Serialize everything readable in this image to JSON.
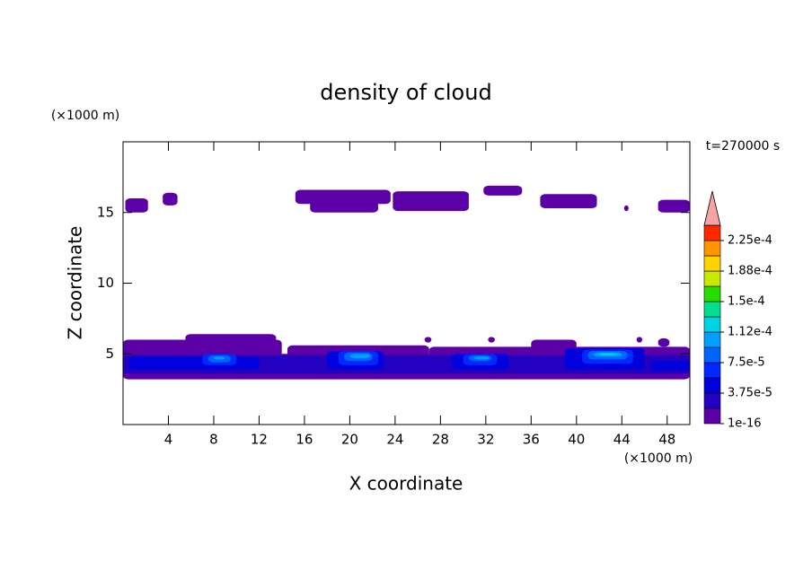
{
  "chart_data": {
    "type": "contour",
    "title": "density of cloud",
    "xlabel": "X coordinate",
    "ylabel": "Z coordinate",
    "xunit": "(×1000 m)",
    "yunit": "(×1000 m)",
    "annotation": "t=270000 s",
    "xlim": [
      0,
      50
    ],
    "ylim": [
      0,
      20
    ],
    "xticks": [
      4,
      8,
      12,
      16,
      20,
      24,
      28,
      32,
      36,
      40,
      44,
      48
    ],
    "yticks": [
      5,
      10,
      15
    ],
    "colorbar": {
      "clim": [
        1e-16,
        0.00024375
      ],
      "colors": [
        "#5b00a6",
        "#2400c0",
        "#0000dc",
        "#0028ff",
        "#0064ff",
        "#00a0ff",
        "#00d2e6",
        "#00e08c",
        "#28dc00",
        "#c8e800",
        "#ffd200",
        "#ff9600",
        "#ff2800"
      ],
      "extend": "max",
      "extend_color": "#f4a4a4",
      "ticks": [
        1e-16,
        {
          "value": 3.75e-05,
          "label": "3.75e-5"
        },
        {
          "value": 7.5e-05,
          "label": "7.5e-5"
        },
        {
          "value": 0.0001125,
          "label": "1.12e-4"
        },
        {
          "value": 0.00015,
          "label": "1.5e-4"
        },
        {
          "value": 0.0001875,
          "label": "1.88e-4"
        },
        {
          "value": 0.000225,
          "label": "2.25e-4"
        }
      ]
    },
    "regions": [
      {
        "x": [
          0.2,
          2.2
        ],
        "z": [
          15,
          16
        ],
        "value": 1e-05
      },
      {
        "x": [
          3.5,
          4.8
        ],
        "z": [
          15.5,
          16.4
        ],
        "value": 1e-05
      },
      {
        "x": [
          15.2,
          23.6
        ],
        "z": [
          15.6,
          16.6
        ],
        "value": 1e-05
      },
      {
        "x": [
          16.5,
          22.5
        ],
        "z": [
          15,
          15.8
        ],
        "value": 1e-05
      },
      {
        "x": [
          23.8,
          30.5
        ],
        "z": [
          15.1,
          16.5
        ],
        "value": 1e-05
      },
      {
        "x": [
          31.8,
          35.2
        ],
        "z": [
          16.2,
          16.9
        ],
        "value": 1e-05
      },
      {
        "x": [
          36.8,
          41.8
        ],
        "z": [
          15.3,
          16.3
        ],
        "value": 1e-05
      },
      {
        "x": [
          44.2,
          44.6
        ],
        "z": [
          15.1,
          15.5
        ],
        "value": 1e-05
      },
      {
        "x": [
          47.2,
          50
        ],
        "z": [
          15,
          15.9
        ],
        "value": 1e-05
      },
      {
        "x": [
          0,
          50
        ],
        "z": [
          3.2,
          5.0
        ],
        "value": 1e-05
      },
      {
        "x": [
          0,
          14
        ],
        "z": [
          4.5,
          6.0
        ],
        "value": 1e-05
      },
      {
        "x": [
          5.5,
          13.5
        ],
        "z": [
          5.2,
          6.4
        ],
        "value": 1e-05
      },
      {
        "x": [
          14.5,
          27
        ],
        "z": [
          4.6,
          5.6
        ],
        "value": 1e-05
      },
      {
        "x": [
          27,
          50
        ],
        "z": [
          4.6,
          5.5
        ],
        "value": 1e-05
      },
      {
        "x": [
          36,
          40
        ],
        "z": [
          5.0,
          6.0
        ],
        "value": 1e-05
      },
      {
        "x": [
          26.6,
          27.2
        ],
        "z": [
          5.8,
          6.2
        ],
        "value": 1e-05
      },
      {
        "x": [
          32.2,
          32.8
        ],
        "z": [
          5.8,
          6.2
        ],
        "value": 1e-05
      },
      {
        "x": [
          45.3,
          45.8
        ],
        "z": [
          5.8,
          6.2
        ],
        "value": 1e-05
      },
      {
        "x": [
          47.2,
          48.2
        ],
        "z": [
          5.5,
          6.1
        ],
        "value": 1e-05
      },
      {
        "x": [
          0,
          50
        ],
        "z": [
          3.6,
          4.9
        ],
        "value": 2.5e-05
      },
      {
        "x": [
          0.5,
          12
        ],
        "z": [
          3.9,
          4.8
        ],
        "value": 4.5e-05
      },
      {
        "x": [
          18,
          23
        ],
        "z": [
          3.9,
          5.2
        ],
        "value": 4.5e-05
      },
      {
        "x": [
          29,
          34
        ],
        "z": [
          3.9,
          5.0
        ],
        "value": 4.5e-05
      },
      {
        "x": [
          39,
          46
        ],
        "z": [
          3.9,
          5.4
        ],
        "value": 4.5e-05
      },
      {
        "x": [
          46.5,
          50
        ],
        "z": [
          3.8,
          4.5
        ],
        "value": 4.5e-05
      },
      {
        "x": [
          7,
          10
        ],
        "z": [
          4.2,
          5.0
        ],
        "value": 6.5e-05
      },
      {
        "x": [
          19,
          22.5
        ],
        "z": [
          4.2,
          5.2
        ],
        "value": 6.5e-05
      },
      {
        "x": [
          30,
          33
        ],
        "z": [
          4.2,
          5.0
        ],
        "value": 6.5e-05
      },
      {
        "x": [
          40.5,
          45
        ],
        "z": [
          4.3,
          5.3
        ],
        "value": 6.5e-05
      },
      {
        "x": [
          7.5,
          9.5
        ],
        "z": [
          4.4,
          4.9
        ],
        "value": 8.5e-05
      },
      {
        "x": [
          19.5,
          22
        ],
        "z": [
          4.5,
          5.1
        ],
        "value": 8.5e-05
      },
      {
        "x": [
          30.5,
          32.5
        ],
        "z": [
          4.5,
          4.9
        ],
        "value": 8.5e-05
      },
      {
        "x": [
          41,
          44.5
        ],
        "z": [
          4.6,
          5.2
        ],
        "value": 8.5e-05
      },
      {
        "x": [
          20,
          21.8
        ],
        "z": [
          4.7,
          5.0
        ],
        "value": 0.0001
      },
      {
        "x": [
          31,
          32.3
        ],
        "z": [
          4.6,
          4.8
        ],
        "value": 0.0001
      },
      {
        "x": [
          41.5,
          44
        ],
        "z": [
          4.8,
          5.1
        ],
        "value": 0.0001
      },
      {
        "x": [
          8,
          9
        ],
        "z": [
          4.6,
          4.8
        ],
        "value": 0.0001
      },
      {
        "x": [
          42,
          43.5
        ],
        "z": [
          4.9,
          5.05
        ],
        "value": 0.00012
      }
    ]
  }
}
